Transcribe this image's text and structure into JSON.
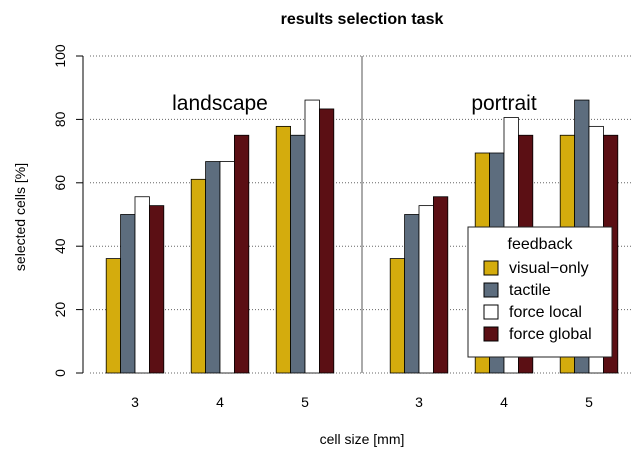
{
  "chart_data": {
    "type": "bar",
    "title": "results selection task",
    "xlabel": "cell size [mm]",
    "ylabel": "selected cells [%]",
    "ylim": [
      0,
      100
    ],
    "yticks": [
      0,
      20,
      40,
      60,
      80,
      100
    ],
    "grid": "horizontal-dotted",
    "panels": [
      {
        "name": "landscape",
        "categories": [
          "3",
          "4",
          "5"
        ],
        "series": [
          {
            "name": "visual−only",
            "values": [
              36.1,
              61.1,
              77.8
            ]
          },
          {
            "name": "tactile",
            "values": [
              50.0,
              66.7,
              75.0
            ]
          },
          {
            "name": "force local",
            "values": [
              55.6,
              66.7,
              86.1
            ]
          },
          {
            "name": "force global",
            "values": [
              52.8,
              75.0,
              83.3
            ]
          }
        ]
      },
      {
        "name": "portrait",
        "categories": [
          "3",
          "4",
          "5"
        ],
        "series": [
          {
            "name": "visual−only",
            "values": [
              36.1,
              69.4,
              75.0
            ]
          },
          {
            "name": "tactile",
            "values": [
              50.0,
              69.4,
              86.1
            ]
          },
          {
            "name": "force local",
            "values": [
              52.8,
              80.6,
              77.8
            ]
          },
          {
            "name": "force global",
            "values": [
              55.6,
              75.0,
              75.0
            ]
          }
        ]
      }
    ],
    "legend": {
      "title": "feedback",
      "placement": "bottom-right",
      "entries": [
        "visual−only",
        "tactile",
        "force local",
        "force global"
      ]
    },
    "colors": [
      "#d4ac0d",
      "#5d6d7e",
      "#ffffff",
      "#5b0f14"
    ]
  }
}
